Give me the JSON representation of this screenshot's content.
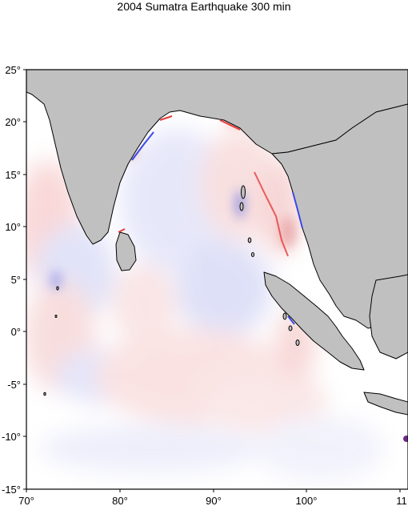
{
  "title": "2004 Sumatra Earthquake  300 min",
  "map": {
    "lon_range": [
      70,
      111
    ],
    "lat_range": [
      -15,
      25
    ],
    "y_ticks": [
      "25°",
      "20°",
      "15°",
      "10°",
      "5°",
      "0°",
      "-5°",
      "-10°",
      "-15°"
    ],
    "x_ticks": [
      "70°",
      "80°",
      "90°",
      "100°",
      "11"
    ],
    "colors": {
      "land": "#c0c0c0",
      "coast": "#000000",
      "wave_positive": "#e83a3a",
      "wave_negative": "#3a4ae8",
      "background": "#ffffff"
    }
  }
}
